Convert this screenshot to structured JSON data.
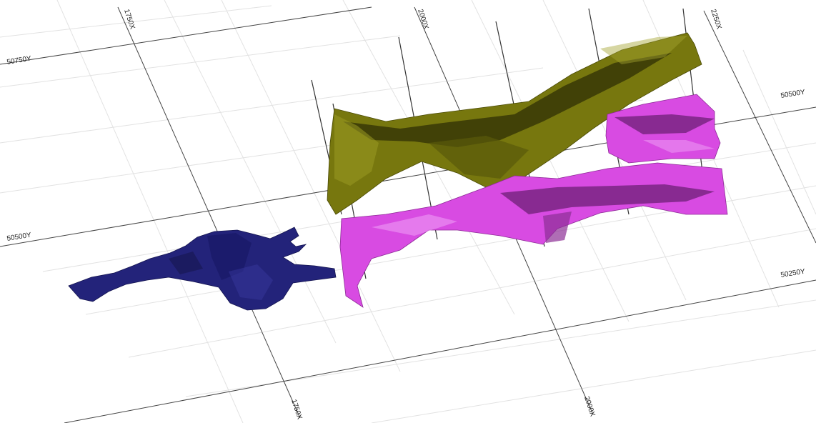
{
  "grid_labels": {
    "top_x_1750": "1750X",
    "top_x_2000": "2000X",
    "top_x_2250": "2250X",
    "bottom_x_1750": "1750X",
    "bottom_x_2000": "2000X",
    "y_50750_left": "50750Y",
    "y_50500_left": "50500Y",
    "y_50500_right": "50500Y",
    "y_50250_right": "50250Y"
  },
  "colors": {
    "navy_body": "#23237a",
    "olive_body": "#77770e",
    "olive_dark": "#2f2f06",
    "magenta_body": "#d84be2",
    "magenta_dark": "#6e1f75",
    "grid_major": "#444444",
    "grid_minor": "#e2e2e2"
  }
}
